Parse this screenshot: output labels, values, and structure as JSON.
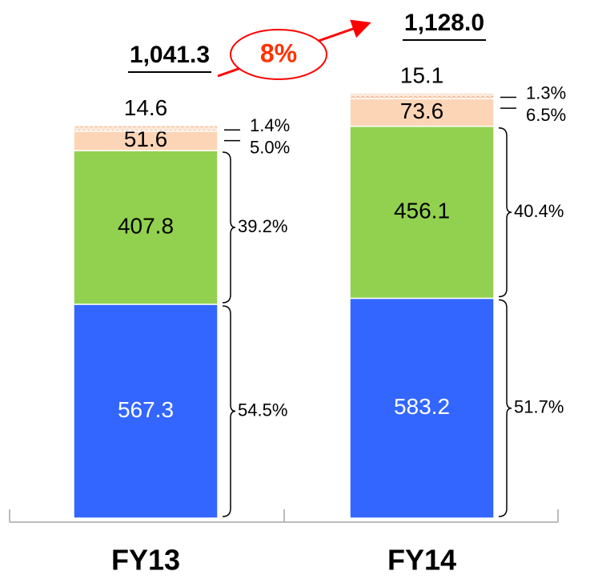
{
  "chart_data": {
    "type": "stacked_bar",
    "categories": [
      "FY13",
      "FY14"
    ],
    "series": [
      {
        "color": "#3366ff",
        "values": [
          567.3,
          583.2
        ],
        "shares": [
          54.5,
          51.7
        ],
        "share_labels": [
          "54.5%",
          "51.7%"
        ]
      },
      {
        "color": "#92d050",
        "values": [
          407.8,
          456.1
        ],
        "shares": [
          39.2,
          40.4
        ],
        "share_labels": [
          "39.2%",
          "40.4%"
        ]
      },
      {
        "color": "#fbd5b5",
        "values": [
          51.6,
          73.6
        ],
        "shares": [
          5.0,
          6.5
        ],
        "share_labels": [
          "5.0%",
          "6.5%"
        ]
      },
      {
        "color": "#fde9d9",
        "values": [
          14.6,
          15.1
        ],
        "shares": [
          1.4,
          1.3
        ],
        "share_labels": [
          "1.4%",
          "1.3%"
        ]
      }
    ],
    "totals": [
      1041.3,
      1128.0
    ],
    "total_labels": [
      "1,041.3",
      "1,128.0"
    ],
    "growth": 8,
    "growth_label": "8%"
  }
}
